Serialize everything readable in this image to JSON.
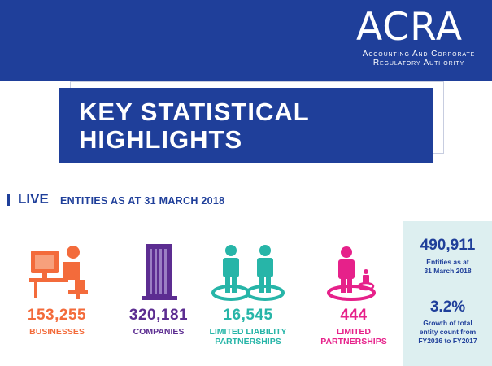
{
  "header": {
    "logo": "ACRA",
    "org_line1": "Accounting And Corporate",
    "org_line2": "Regulatory Authority"
  },
  "title": {
    "line1": "KEY STATISTICAL",
    "line2": "HIGHLIGHTS"
  },
  "section": {
    "live": "LIVE",
    "subtitle": "ENTITIES AS AT 31 MARCH 2018"
  },
  "stats": [
    {
      "value": "153,255",
      "label_line1": "BUSINESSES",
      "label_line2": "",
      "color": "#f36b3b",
      "icon": "business-person-icon"
    },
    {
      "value": "320,181",
      "label_line1": "COMPANIES",
      "label_line2": "",
      "color": "#5c2d91",
      "icon": "building-icon"
    },
    {
      "value": "16,545",
      "label_line1": "LIMITED LIABILITY",
      "label_line2": "PARTNERSHIPS",
      "color": "#27b5a8",
      "icon": "two-partners-icon"
    },
    {
      "value": "444",
      "label_line1": "LIMITED",
      "label_line2": "PARTNERSHIPS",
      "color": "#e6218a",
      "icon": "partner-with-small-partner-icon"
    }
  ],
  "side": {
    "total_value": "490,911",
    "total_caption_line1": "Entities as at",
    "total_caption_line2": "31 March 2018",
    "growth_value": "3.2%",
    "growth_caption_line1": "Growth of total",
    "growth_caption_line2": "entity count from",
    "growth_caption_line3": "FY2016 to FY2017",
    "accent": "#1f3f9a"
  }
}
